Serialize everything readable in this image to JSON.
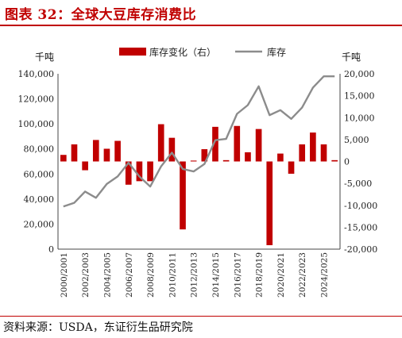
{
  "title": "图表 32：全球大豆库存消费比",
  "source": "资料来源：USDA，东证衍生品研究院",
  "chart_data": {
    "type": "bar+line",
    "left_unit": "千吨",
    "right_unit": "千吨",
    "left_axis": {
      "min": 0,
      "max": 140000,
      "step": 20000,
      "ticks": [
        "0",
        "20,000",
        "40,000",
        "60,000",
        "80,000",
        "100,000",
        "120,000",
        "140,000"
      ]
    },
    "right_axis": {
      "min": -20000,
      "max": 20000,
      "step": 5000,
      "ticks": [
        "-20,000",
        "-15,000",
        "-10,000",
        "-5,000",
        "0",
        "5,000",
        "10,000",
        "15,000",
        "20,000"
      ]
    },
    "x": [
      "2000/2001",
      "2001/2002",
      "2002/2003",
      "2003/2004",
      "2004/2005",
      "2005/2006",
      "2006/2007",
      "2007/2008",
      "2008/2009",
      "2009/2010",
      "2010/2011",
      "2011/2012",
      "2012/2013",
      "2013/2014",
      "2014/2015",
      "2015/2016",
      "2016/2017",
      "2017/2018",
      "2018/2019",
      "2019/2020",
      "2020/2021",
      "2021/2022",
      "2022/2023",
      "2023/2024",
      "2024/2025",
      "2025/2026"
    ],
    "x_tick_labels": [
      "2000/2001",
      "",
      "2002/2003",
      "",
      "2004/2005",
      "",
      "2006/2007",
      "",
      "2008/2009",
      "",
      "2010/2011",
      "",
      "2012/2013",
      "",
      "2014/2015",
      "",
      "2016/2017",
      "",
      "2018/2019",
      "",
      "2020/2021",
      "",
      "2022/2023",
      "",
      "2024/2025",
      ""
    ],
    "series": [
      {
        "name": "库存变化（右）",
        "type": "bar",
        "axis": "right",
        "color": "#c00000",
        "values": [
          1500,
          3900,
          -2000,
          4900,
          2900,
          4700,
          -5300,
          -4500,
          -4500,
          8500,
          5400,
          -15500,
          200,
          2800,
          7900,
          300,
          8100,
          2100,
          7400,
          -19100,
          1800,
          -2800,
          3900,
          6600,
          3900,
          300
        ]
      },
      {
        "name": "库存",
        "type": "line",
        "axis": "left",
        "color": "#8c8c8c",
        "values": [
          34000,
          37000,
          46000,
          41000,
          52000,
          58000,
          69000,
          58000,
          50000,
          66000,
          77000,
          64000,
          62000,
          68000,
          87000,
          88000,
          108000,
          115000,
          130000,
          107000,
          111000,
          104000,
          113000,
          129000,
          138000,
          138000
        ]
      }
    ],
    "legend_position": "top-center",
    "grid": false
  }
}
